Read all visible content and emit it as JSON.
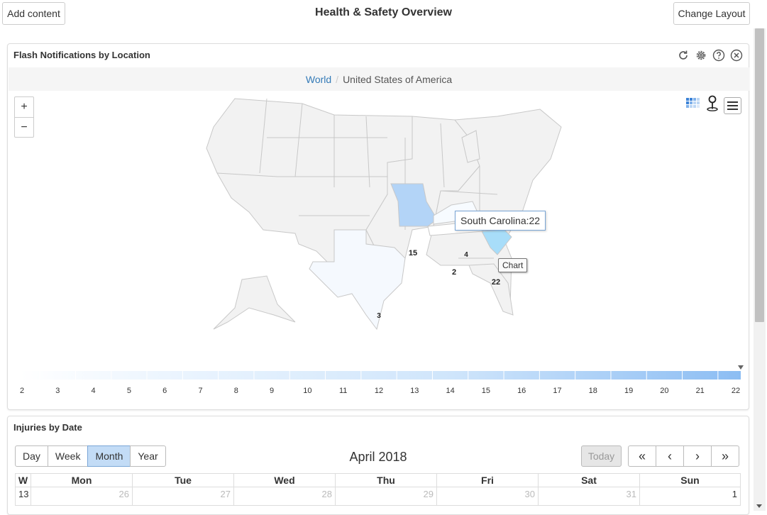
{
  "header": {
    "add_content": "Add content",
    "title": "Health & Safety Overview",
    "change_layout": "Change Layout"
  },
  "map_panel": {
    "title": "Flash Notifications by Location",
    "breadcrumb": {
      "root": "World",
      "current": "United States of America"
    },
    "zoom_in": "+",
    "zoom_out": "−",
    "tooltip": "South Carolina:22",
    "chart_tip": "Chart",
    "state_values": {
      "missouri": "15",
      "kentucky": "4",
      "tennessee": "2",
      "south_carolina": "22",
      "texas": "3"
    },
    "legend_labels": [
      "2",
      "3",
      "4",
      "5",
      "6",
      "7",
      "8",
      "9",
      "10",
      "11",
      "12",
      "13",
      "14",
      "15",
      "16",
      "17",
      "18",
      "19",
      "20",
      "21",
      "22"
    ],
    "colors": {
      "map_fill": "#f2f2f2",
      "map_stroke": "#c8c8c8",
      "missouri": "#b3d4f7",
      "south_carolina": "#a8ddf9",
      "tennessee": "#ffffff",
      "kentucky": "#f7fbff",
      "texas": "#f5f9fe"
    }
  },
  "calendar_panel": {
    "title": "Injuries by Date",
    "views": [
      "Day",
      "Week",
      "Month",
      "Year"
    ],
    "active_view": "Month",
    "month_title": "April 2018",
    "today": "Today",
    "nav": [
      "«",
      "‹",
      "›",
      "»"
    ],
    "columns": [
      "W",
      "Mon",
      "Tue",
      "Wed",
      "Thu",
      "Fri",
      "Sat",
      "Sun"
    ],
    "rows": [
      [
        "13",
        "26",
        "27",
        "28",
        "29",
        "30",
        "31",
        "1"
      ]
    ]
  }
}
